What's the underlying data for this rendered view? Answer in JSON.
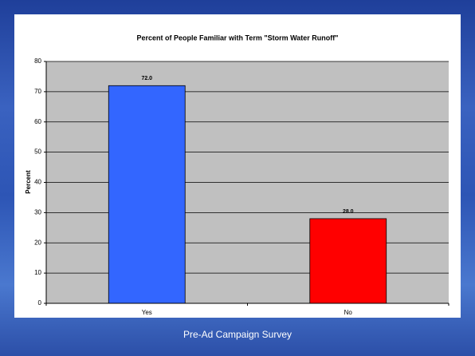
{
  "chart_data": {
    "type": "bar",
    "title": "Percent of People Familiar with Term \"Storm Water Runoff\"",
    "y_label": "Percent",
    "categories": [
      "Yes",
      "No"
    ],
    "values": [
      72.0,
      28.0
    ],
    "value_labels": [
      "72.0",
      "28.0"
    ],
    "colors": [
      "#3366ff",
      "#ff0000"
    ],
    "ylim": [
      0,
      80
    ],
    "yticks": [
      0,
      10,
      20,
      30,
      40,
      50,
      60,
      70,
      80
    ],
    "grid": true
  },
  "caption": "Pre-Ad Campaign Survey"
}
